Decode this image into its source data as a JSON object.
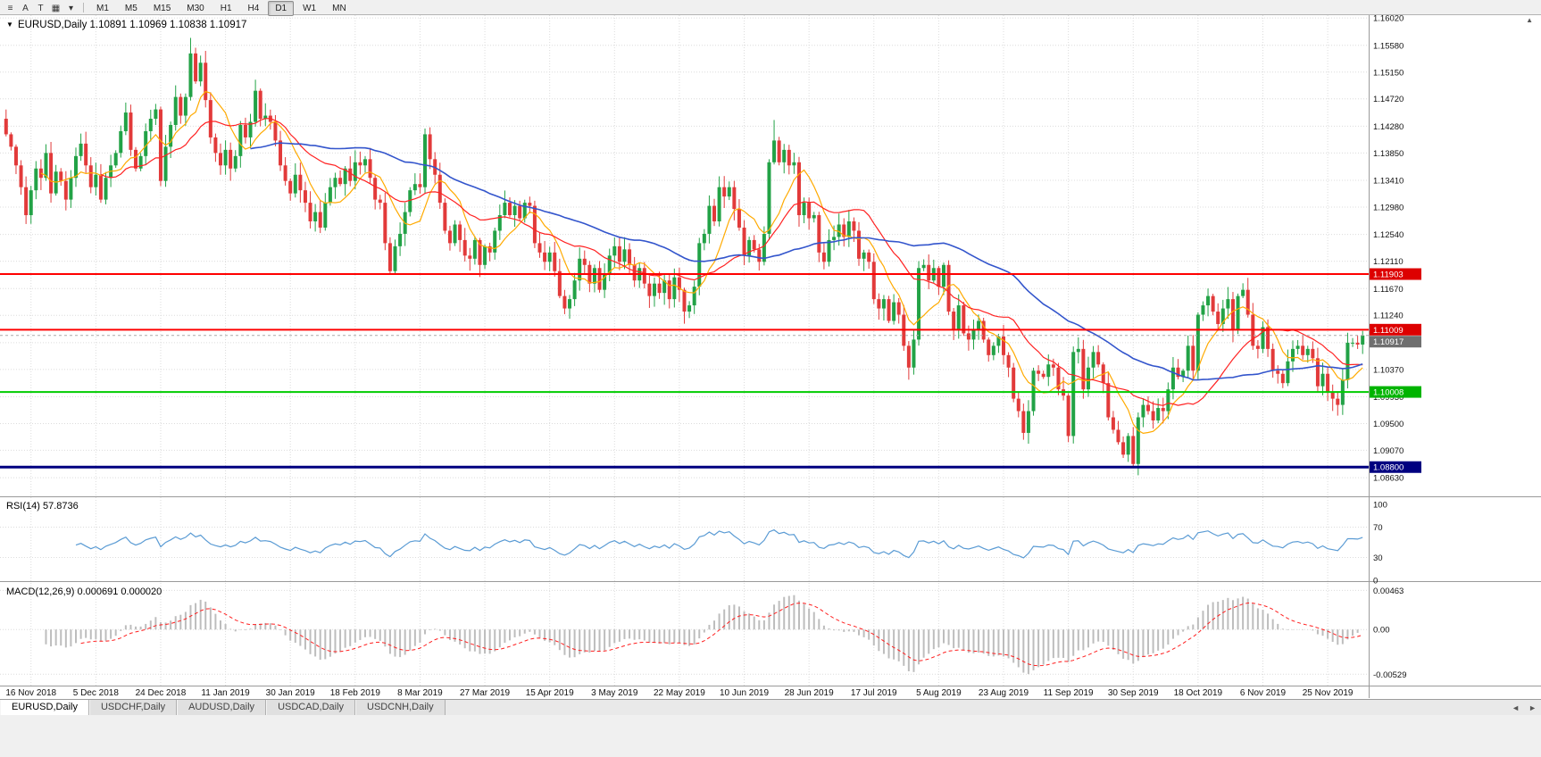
{
  "toolbar": {
    "icons": [
      {
        "name": "chart-list-icon",
        "glyph": "≡"
      },
      {
        "name": "annotation-a-icon",
        "glyph": "A"
      },
      {
        "name": "text-tool-icon",
        "glyph": "T"
      },
      {
        "name": "templates-icon",
        "glyph": "▦"
      },
      {
        "name": "dropdown-caret-icon",
        "glyph": "▾"
      }
    ],
    "timeframes": [
      {
        "label": "M1"
      },
      {
        "label": "M5"
      },
      {
        "label": "M15"
      },
      {
        "label": "M30"
      },
      {
        "label": "H1"
      },
      {
        "label": "H4"
      },
      {
        "label": "D1",
        "active": true
      },
      {
        "label": "W1"
      },
      {
        "label": "MN"
      }
    ]
  },
  "chart_header": {
    "menu_glyph": "▼",
    "text": "EURUSD,Daily  1.10891 1.10969 1.10838 1.10917"
  },
  "scroll_icons": {
    "up": "▲",
    "tab_left": "◄",
    "tab_right": "►"
  },
  "tabs": [
    {
      "label": "EURUSD,Daily",
      "active": true
    },
    {
      "label": "USDCHF,Daily"
    },
    {
      "label": "AUDUSD,Daily"
    },
    {
      "label": "USDCAD,Daily"
    },
    {
      "label": "USDCNH,Daily"
    }
  ],
  "chart_data": {
    "type": "candlestick",
    "symbol": "EURUSD",
    "timeframe": "Daily",
    "ohlc_display": {
      "open": "1.10891",
      "high": "1.10969",
      "low": "1.10838",
      "close": "1.10917"
    },
    "ylim": [
      1.0833,
      1.16065
    ],
    "y_ticks": [
      "1.16020",
      "1.15580",
      "1.15150",
      "1.14720",
      "1.14280",
      "1.13850",
      "1.13410",
      "1.12980",
      "1.12540",
      "1.12110",
      "1.11670",
      "1.11240",
      "1.10800",
      "1.10370",
      "1.09930",
      "1.09500",
      "1.09070",
      "1.08630"
    ],
    "x_ticks": [
      "16 Nov 2018",
      "5 Dec 2018",
      "24 Dec 2018",
      "11 Jan 2019",
      "30 Jan 2019",
      "18 Feb 2019",
      "8 Mar 2019",
      "27 Mar 2019",
      "15 Apr 2019",
      "3 May 2019",
      "22 May 2019",
      "10 Jun 2019",
      "28 Jun 2019",
      "17 Jul 2019",
      "5 Aug 2019",
      "23 Aug 2019",
      "11 Sep 2019",
      "30 Sep 2019",
      "18 Oct 2019",
      "6 Nov 2019",
      "25 Nov 2019"
    ],
    "bull_color": "#22a246",
    "bear_color": "#e23a3a",
    "overlays": [
      {
        "name": "ma-fast-line",
        "period": 8,
        "color": "#ffaa00",
        "width": 1.2
      },
      {
        "name": "ma-mid-line",
        "period": 20,
        "color": "#ff2222",
        "width": 1.2
      },
      {
        "name": "ma-slow-line",
        "period": 50,
        "color": "#3355cc",
        "width": 1.6
      }
    ],
    "hlines": [
      {
        "price": 1.11903,
        "label": "1.11903",
        "color": "#ff0000",
        "tag": "#dd0000",
        "width": 2
      },
      {
        "price": 1.11009,
        "label": "1.11009",
        "color": "#ff0000",
        "tag": "#dd0000",
        "width": 2
      },
      {
        "price": 1.10008,
        "label": "1.10008",
        "color": "#00cc00",
        "tag": "#00b400",
        "width": 2
      },
      {
        "price": 1.088,
        "label": "1.08800",
        "color": "#000080",
        "tag": "#000080",
        "width": 3
      }
    ],
    "current_price": {
      "value": 1.10917,
      "label": "1.10917",
      "tag_color": "#6f6f6f"
    },
    "indicators": {
      "rsi": {
        "label": "RSI(14) 57.8736",
        "period": 14,
        "value": 57.8736,
        "color": "#5a9bd4",
        "levels": [
          70,
          30
        ],
        "axis_labels": [
          {
            "v": 100,
            "t": "100"
          },
          {
            "v": 70,
            "t": "70"
          },
          {
            "v": 30,
            "t": "30"
          },
          {
            "v": 0,
            "t": "0"
          }
        ]
      },
      "macd": {
        "label": "MACD(12,26,9) 0.000691 0.000020",
        "fast": 12,
        "slow": 26,
        "signal_period": 9,
        "values": [
          0.000691,
          2e-05
        ],
        "hist_color": "#bdbdbd",
        "signal_color": "#ff1f1f",
        "axis_labels": [
          {
            "v": 0.00463,
            "t": "0.00463"
          },
          {
            "v": 0,
            "t": "0.00"
          },
          {
            "v": -0.00529,
            "t": "-0.00529"
          }
        ]
      }
    },
    "closes": [
      1.1415,
      1.1395,
      1.1365,
      1.133,
      1.1285,
      1.1325,
      1.136,
      1.1345,
      1.1385,
      1.132,
      1.1355,
      1.134,
      1.131,
      1.1345,
      1.138,
      1.14,
      1.1365,
      1.133,
      1.135,
      1.131,
      1.1345,
      1.1365,
      1.1385,
      1.142,
      1.145,
      1.139,
      1.136,
      1.138,
      1.142,
      1.144,
      1.1455,
      1.134,
      1.1395,
      1.143,
      1.1475,
      1.1445,
      1.1475,
      1.1545,
      1.15,
      1.153,
      1.147,
      1.141,
      1.1385,
      1.1365,
      1.139,
      1.136,
      1.138,
      1.143,
      1.141,
      1.1435,
      1.1485,
      1.144,
      1.1445,
      1.1435,
      1.1405,
      1.1365,
      1.134,
      1.132,
      1.135,
      1.1325,
      1.1305,
      1.1275,
      1.129,
      1.1265,
      1.1305,
      1.133,
      1.1345,
      1.1335,
      1.136,
      1.134,
      1.137,
      1.1365,
      1.1375,
      1.1345,
      1.131,
      1.1305,
      1.124,
      1.1195,
      1.1235,
      1.1255,
      1.129,
      1.1325,
      1.1335,
      1.133,
      1.1415,
      1.1375,
      1.135,
      1.1305,
      1.126,
      1.124,
      1.127,
      1.1245,
      1.122,
      1.1215,
      1.1245,
      1.1205,
      1.1235,
      1.1225,
      1.126,
      1.1285,
      1.1305,
      1.1285,
      1.13,
      1.128,
      1.1305,
      1.13,
      1.124,
      1.1225,
      1.121,
      1.1225,
      1.1195,
      1.1155,
      1.1135,
      1.115,
      1.118,
      1.1215,
      1.1205,
      1.1175,
      1.12,
      1.1165,
      1.119,
      1.122,
      1.1235,
      1.121,
      1.123,
      1.1205,
      1.118,
      1.12,
      1.1175,
      1.1155,
      1.1175,
      1.116,
      1.118,
      1.115,
      1.1185,
      1.1165,
      1.113,
      1.114,
      1.117,
      1.124,
      1.1255,
      1.13,
      1.1275,
      1.133,
      1.1315,
      1.133,
      1.1295,
      1.1265,
      1.122,
      1.1245,
      1.123,
      1.121,
      1.1255,
      1.137,
      1.1405,
      1.137,
      1.139,
      1.1365,
      1.137,
      1.1285,
      1.1305,
      1.128,
      1.1285,
      1.1225,
      1.121,
      1.1245,
      1.125,
      1.127,
      1.125,
      1.1275,
      1.126,
      1.1215,
      1.1225,
      1.121,
      1.115,
      1.1135,
      1.115,
      1.1115,
      1.1145,
      1.1125,
      1.1075,
      1.104,
      1.1085,
      1.12,
      1.1205,
      1.118,
      1.12,
      1.117,
      1.1205,
      1.113,
      1.11,
      1.114,
      1.1095,
      1.1085,
      1.11,
      1.1115,
      1.1085,
      1.106,
      1.1075,
      1.109,
      1.106,
      1.104,
      1.099,
      1.097,
      1.0935,
      1.097,
      1.1035,
      1.103,
      1.1025,
      1.1045,
      1.104,
      1.1005,
      1.0995,
      1.093,
      1.1065,
      1.107,
      1.1005,
      1.104,
      1.1065,
      1.1045,
      1.1015,
      1.096,
      1.094,
      1.092,
      1.09,
      1.093,
      1.0885,
      1.096,
      1.098,
      1.097,
      1.0955,
      1.0975,
      1.097,
      1.1005,
      1.104,
      1.1025,
      1.1035,
      1.1075,
      1.1035,
      1.1125,
      1.114,
      1.1155,
      1.113,
      1.111,
      1.1135,
      1.115,
      1.11,
      1.1155,
      1.1165,
      1.1125,
      1.1075,
      1.107,
      1.1105,
      1.107,
      1.1035,
      1.103,
      1.1015,
      1.105,
      1.107,
      1.1075,
      1.106,
      1.107,
      1.1055,
      1.101,
      1.103,
      1.1,
      1.099,
      1.098,
      1.102,
      1.108,
      1.108,
      1.1077,
      1.10917
    ],
    "wick_overrides": [
      {
        "i": 37,
        "high": 1.157
      },
      {
        "i": 154,
        "high": 1.1438
      },
      {
        "i": 226,
        "low": 1.0879
      }
    ]
  }
}
